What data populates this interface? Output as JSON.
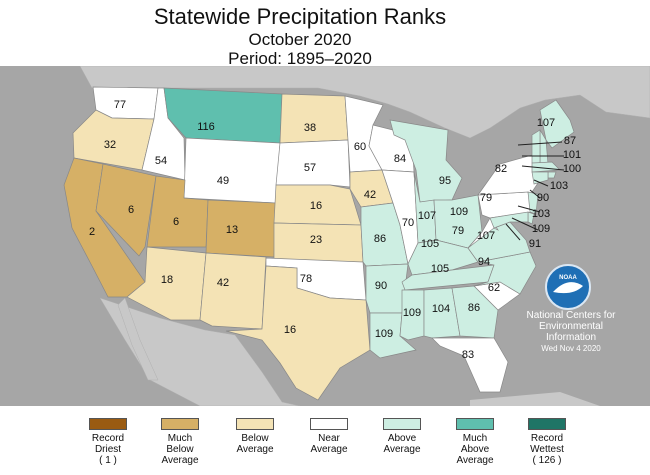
{
  "title": {
    "line1": "Statewide Precipitation Ranks",
    "line2": "October 2020",
    "line3": "Period: 1895–2020"
  },
  "colors": {
    "record_driest": "#9a5b12",
    "much_below": "#d6b066",
    "below": "#f4e3b5",
    "near": "#ffffff",
    "above": "#cdeee2",
    "much_above": "#5fbfae",
    "record_wettest": "#1f7566",
    "ocean": "#a6a6a6",
    "land_outside": "#c8c8c8"
  },
  "states": [
    {
      "abbr": "WA",
      "rank": "77",
      "cat": "near"
    },
    {
      "abbr": "OR",
      "rank": "32",
      "cat": "below"
    },
    {
      "abbr": "CA",
      "rank": "2",
      "cat": "much_below"
    },
    {
      "abbr": "NV",
      "rank": "6",
      "cat": "much_below"
    },
    {
      "abbr": "ID",
      "rank": "54",
      "cat": "near"
    },
    {
      "abbr": "MT",
      "rank": "116",
      "cat": "much_above"
    },
    {
      "abbr": "WY",
      "rank": "49",
      "cat": "near"
    },
    {
      "abbr": "UT",
      "rank": "6",
      "cat": "much_below"
    },
    {
      "abbr": "CO",
      "rank": "13",
      "cat": "much_below"
    },
    {
      "abbr": "AZ",
      "rank": "18",
      "cat": "below"
    },
    {
      "abbr": "NM",
      "rank": "42",
      "cat": "below"
    },
    {
      "abbr": "ND",
      "rank": "38",
      "cat": "below"
    },
    {
      "abbr": "SD",
      "rank": "57",
      "cat": "near"
    },
    {
      "abbr": "NE",
      "rank": "16",
      "cat": "below"
    },
    {
      "abbr": "KS",
      "rank": "23",
      "cat": "below"
    },
    {
      "abbr": "OK",
      "rank": "78",
      "cat": "near"
    },
    {
      "abbr": "TX",
      "rank": "16",
      "cat": "below"
    },
    {
      "abbr": "MN",
      "rank": "60",
      "cat": "near"
    },
    {
      "abbr": "IA",
      "rank": "42",
      "cat": "below"
    },
    {
      "abbr": "MO",
      "rank": "86",
      "cat": "above"
    },
    {
      "abbr": "AR",
      "rank": "90",
      "cat": "above"
    },
    {
      "abbr": "LA",
      "rank": "109",
      "cat": "above"
    },
    {
      "abbr": "WI",
      "rank": "84",
      "cat": "near"
    },
    {
      "abbr": "IL",
      "rank": "70",
      "cat": "near"
    },
    {
      "abbr": "MI",
      "rank": "95",
      "cat": "above"
    },
    {
      "abbr": "IN",
      "rank": "107",
      "cat": "above"
    },
    {
      "abbr": "OH",
      "rank": "109",
      "cat": "above"
    },
    {
      "abbr": "KY",
      "rank": "105",
      "cat": "above"
    },
    {
      "abbr": "TN",
      "rank": "105",
      "cat": "above"
    },
    {
      "abbr": "MS",
      "rank": "109",
      "cat": "above"
    },
    {
      "abbr": "AL",
      "rank": "104",
      "cat": "above"
    },
    {
      "abbr": "GA",
      "rank": "86",
      "cat": "above"
    },
    {
      "abbr": "FL",
      "rank": "83",
      "cat": "near"
    },
    {
      "abbr": "SC",
      "rank": "62",
      "cat": "near"
    },
    {
      "abbr": "NC",
      "rank": "94",
      "cat": "above"
    },
    {
      "abbr": "VA",
      "rank": "107",
      "cat": "above"
    },
    {
      "abbr": "WV",
      "rank": "79",
      "cat": "near"
    },
    {
      "abbr": "PA",
      "rank": "79",
      "cat": "near"
    },
    {
      "abbr": "NY",
      "rank": "82",
      "cat": "near"
    },
    {
      "abbr": "ME",
      "rank": "107",
      "cat": "above"
    },
    {
      "abbr": "NH",
      "rank": "87",
      "cat": "above"
    },
    {
      "abbr": "VT",
      "rank": "101",
      "cat": "above"
    },
    {
      "abbr": "MA",
      "rank": "100",
      "cat": "above"
    },
    {
      "abbr": "RI",
      "rank": "103",
      "cat": "above"
    },
    {
      "abbr": "CT",
      "rank": "90",
      "cat": "above"
    },
    {
      "abbr": "NJ",
      "rank": "103",
      "cat": "above"
    },
    {
      "abbr": "DE",
      "rank": "109",
      "cat": "above"
    },
    {
      "abbr": "MD",
      "rank": "91",
      "cat": "above"
    }
  ],
  "attribution": {
    "logo_text": "NOAA",
    "line1": "National Centers for",
    "line2": "Environmental",
    "line3": "Information",
    "date": "Wed Nov  4 2020"
  },
  "legend": [
    {
      "cat": "record_driest",
      "label": "Record\nDriest\n( 1 )"
    },
    {
      "cat": "much_below",
      "label": "Much\nBelow\nAverage"
    },
    {
      "cat": "below",
      "label": "Below\nAverage"
    },
    {
      "cat": "near",
      "label": "Near\nAverage"
    },
    {
      "cat": "above",
      "label": "Above\nAverage"
    },
    {
      "cat": "much_above",
      "label": "Much\nAbove\nAverage"
    },
    {
      "cat": "record_wettest",
      "label": "Record\nWettest\n( 126 )"
    }
  ]
}
